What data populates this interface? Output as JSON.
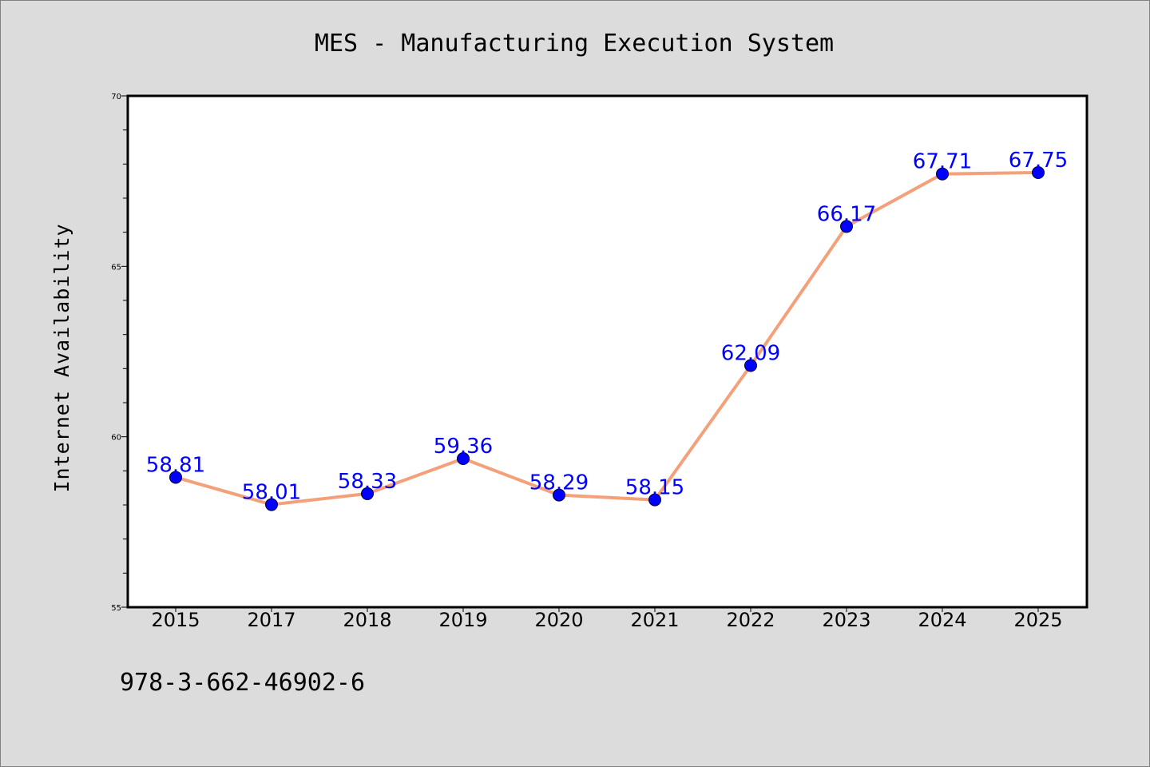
{
  "chart_data": {
    "type": "line",
    "title": "MES - Manufacturing Execution System",
    "xlabel": "",
    "ylabel": "Internet Availability",
    "categories": [
      "2015",
      "2017",
      "2018",
      "2019",
      "2020",
      "2021",
      "2022",
      "2023",
      "2024",
      "2025"
    ],
    "series": [
      {
        "values": [
          58.81,
          58.01,
          58.33,
          59.36,
          58.29,
          58.15,
          62.09,
          66.17,
          67.71,
          67.75
        ]
      }
    ],
    "data_labels": [
      "58.81",
      "58.01",
      "58.33",
      "59.36",
      "58.29",
      "58.15",
      "62.09",
      "66.17",
      "67.71",
      "67.75"
    ],
    "ylim": [
      55,
      70
    ],
    "yticks": [
      55,
      60,
      65,
      70
    ],
    "ytick_labels": [
      "55",
      "60",
      "65",
      "70"
    ],
    "grid": false,
    "colors": {
      "line": "#f4a07a",
      "marker": "#0000ff",
      "label": "#0000ff",
      "background": "#dcdcdc",
      "plot_area": "#ffffff"
    }
  },
  "footnote": "978-3-662-46902-6"
}
